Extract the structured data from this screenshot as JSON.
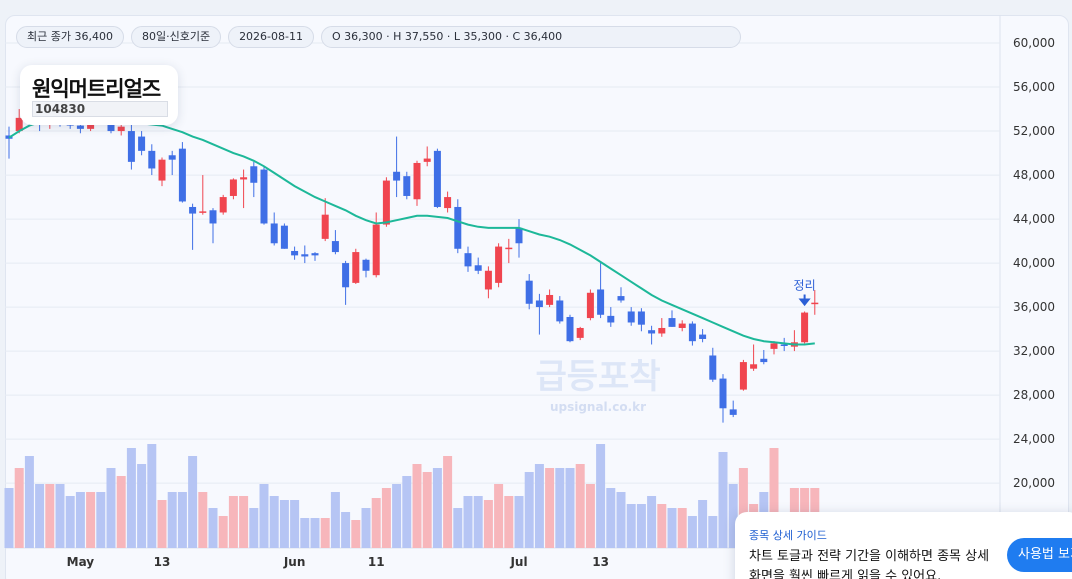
{
  "ui": {
    "chips": [
      "최근 종가 36,400",
      "80일·신호기준",
      "2026-08-11",
      "O 36,300 · H 37,550 · L 35,300 · C 36,400"
    ],
    "stock_name": "원익머트리얼즈",
    "stock_code": "104830",
    "watermark": "급등포착",
    "watermark_url": "upsignal.co.kr",
    "guide": {
      "title": "종목 상세 가이드",
      "line1": "차트 토글과 전략 기간을 이해하면 종목 상세",
      "line2": "화면을 훨씬 빠르게 읽을 수 있어요.",
      "button": "사용법 보기"
    }
  },
  "chart_data": {
    "type": "candlestick",
    "annotation": "정리",
    "categories": [
      null,
      null,
      null,
      null,
      null,
      null,
      null,
      "May",
      null,
      null,
      null,
      null,
      null,
      null,
      null,
      "13",
      null,
      null,
      null,
      null,
      null,
      null,
      null,
      null,
      null,
      null,
      null,
      null,
      "Jun",
      null,
      null,
      null,
      null,
      null,
      null,
      null,
      "11",
      null,
      null,
      null,
      null,
      null,
      null,
      null,
      null,
      null,
      null,
      null,
      null,
      null,
      "Jul",
      null,
      null,
      null,
      null,
      null,
      null,
      null,
      "13",
      null,
      null,
      null,
      null,
      null,
      null,
      null,
      null,
      null,
      null,
      null,
      null,
      null,
      null,
      null,
      null,
      null,
      null,
      null,
      null,
      null
    ],
    "open": [
      51600,
      52000,
      53200,
      53000,
      52600,
      53000,
      52800,
      52500,
      52200,
      53200,
      52900,
      52000,
      52000,
      51500,
      50200,
      47500,
      49800,
      50400,
      45100,
      44600,
      44800,
      44600,
      46100,
      47600,
      48800,
      48500,
      43600,
      43400,
      41100,
      40800,
      40900,
      42200,
      42000,
      40000,
      38200,
      40300,
      38900,
      43500,
      48300,
      47900,
      45800,
      49200,
      50200,
      45000,
      45100,
      40900,
      39800,
      37600,
      38200,
      41300,
      43200,
      38400,
      36600,
      36200,
      36600,
      35100,
      33200,
      35000,
      37600,
      35200,
      37000,
      35600,
      35600,
      33900,
      33600,
      35000,
      34100,
      34500,
      33500,
      31600,
      29500,
      26700,
      28500,
      30400,
      31300,
      32200,
      32600,
      32400,
      32800,
      36300
    ],
    "high": [
      52400,
      54000,
      53800,
      53500,
      53400,
      53600,
      53200,
      53000,
      53600,
      53800,
      53300,
      52800,
      52600,
      52000,
      50800,
      49600,
      50200,
      51000,
      45400,
      48000,
      45000,
      46200,
      47700,
      48500,
      49200,
      48800,
      44600,
      43600,
      41500,
      41600,
      41000,
      45900,
      43000,
      40200,
      41300,
      40400,
      44600,
      47800,
      51500,
      48300,
      49300,
      50600,
      50400,
      46500,
      45800,
      41500,
      40500,
      39700,
      41800,
      42200,
      44000,
      39000,
      37200,
      37600,
      37000,
      35300,
      34200,
      37600,
      40000,
      36000,
      37800,
      36000,
      35900,
      34300,
      35000,
      35700,
      34800,
      34700,
      34000,
      32300,
      29900,
      27500,
      31200,
      32600,
      32100,
      32900,
      33200,
      33900,
      35600,
      37550
    ],
    "low": [
      49500,
      51800,
      52500,
      52000,
      52200,
      52400,
      52200,
      51800,
      52000,
      52600,
      51800,
      51600,
      48500,
      49800,
      48000,
      47000,
      48000,
      45500,
      41200,
      44400,
      41800,
      44400,
      45800,
      45000,
      46000,
      43500,
      41600,
      41300,
      40300,
      40000,
      40200,
      42000,
      40800,
      36200,
      38100,
      38700,
      38700,
      43300,
      46000,
      45800,
      45200,
      48800,
      45000,
      44600,
      40900,
      39200,
      39000,
      36800,
      37800,
      40000,
      40500,
      35800,
      33500,
      36000,
      34500,
      32800,
      33000,
      34800,
      35000,
      34200,
      36400,
      34300,
      33800,
      32600,
      33300,
      34200,
      33800,
      32500,
      32800,
      29200,
      25500,
      26000,
      28400,
      30200,
      30800,
      31700,
      32000,
      32000,
      32700,
      35300
    ],
    "close": [
      51300,
      53200,
      53000,
      52600,
      53000,
      52800,
      52500,
      52200,
      53200,
      52900,
      52000,
      52400,
      49200,
      50200,
      48600,
      49400,
      49400,
      45600,
      44500,
      44700,
      43600,
      46000,
      47600,
      47800,
      47300,
      43600,
      41800,
      41300,
      40700,
      40600,
      40700,
      44400,
      41000,
      37800,
      41000,
      39300,
      43500,
      47500,
      47500,
      46100,
      49100,
      49500,
      45100,
      46000,
      41300,
      39700,
      39300,
      39300,
      41500,
      41400,
      41800,
      36300,
      36000,
      37100,
      34700,
      32900,
      34100,
      37300,
      35300,
      34600,
      36600,
      34600,
      34400,
      33600,
      34100,
      34200,
      34500,
      32900,
      33100,
      29400,
      26800,
      26200,
      31000,
      30800,
      31000,
      32700,
      32500,
      32800,
      35500,
      36400
    ],
    "volume": [
      60,
      80,
      92,
      64,
      64,
      64,
      52,
      56,
      56,
      56,
      80,
      72,
      100,
      84,
      104,
      48,
      56,
      56,
      92,
      56,
      40,
      32,
      52,
      52,
      40,
      64,
      52,
      48,
      48,
      30,
      30,
      30,
      56,
      36,
      28,
      40,
      50,
      60,
      64,
      72,
      84,
      76,
      80,
      92,
      40,
      52,
      52,
      48,
      64,
      52,
      52,
      76,
      84,
      80,
      80,
      80,
      84,
      64,
      104,
      60,
      56,
      44,
      44,
      52,
      44,
      40,
      40,
      32,
      48,
      32,
      96,
      64,
      80,
      44,
      56,
      100,
      32,
      60,
      60,
      60
    ],
    "ma": [
      51400,
      52000,
      52500,
      52800,
      53000,
      53100,
      53100,
      53100,
      53000,
      53000,
      52900,
      52900,
      52800,
      52700,
      52600,
      52500,
      52200,
      51900,
      51500,
      51200,
      50800,
      50400,
      50000,
      49700,
      49300,
      48800,
      48200,
      47600,
      47000,
      46500,
      46000,
      45600,
      45200,
      44800,
      44300,
      43900,
      43600,
      43700,
      43900,
      44100,
      44300,
      44300,
      44200,
      44100,
      43800,
      43500,
      43300,
      43200,
      43200,
      43200,
      43200,
      42900,
      42600,
      42400,
      42100,
      41700,
      41200,
      40700,
      40100,
      39500,
      38900,
      38300,
      37700,
      37100,
      36600,
      36200,
      35800,
      35400,
      35000,
      34600,
      34200,
      33800,
      33400,
      33100,
      32900,
      32800,
      32700,
      32600,
      32600,
      32700
    ],
    "up_color": "#f0454f",
    "down_color": "#3f6fe6",
    "up_volume_color": "#f7b6bb",
    "down_volume_color": "#b6c5f4",
    "ma_color": "#1db899",
    "ylim": [
      14100,
      62550
    ],
    "yticks": [
      {
        "value": 60000,
        "label": "60,000"
      },
      {
        "value": 56000,
        "label": "56,000"
      },
      {
        "value": 52000,
        "label": "52,000"
      },
      {
        "value": 48000,
        "label": "48,000"
      },
      {
        "value": 44000,
        "label": "44,000"
      },
      {
        "value": 40000,
        "label": "40,000"
      },
      {
        "value": 36000,
        "label": "36,000"
      },
      {
        "value": 32000,
        "label": "32,000"
      },
      {
        "value": 28000,
        "label": "28,000"
      },
      {
        "value": 24000,
        "label": "24,000"
      },
      {
        "value": 20000,
        "label": "20,000"
      }
    ],
    "grid": true
  }
}
